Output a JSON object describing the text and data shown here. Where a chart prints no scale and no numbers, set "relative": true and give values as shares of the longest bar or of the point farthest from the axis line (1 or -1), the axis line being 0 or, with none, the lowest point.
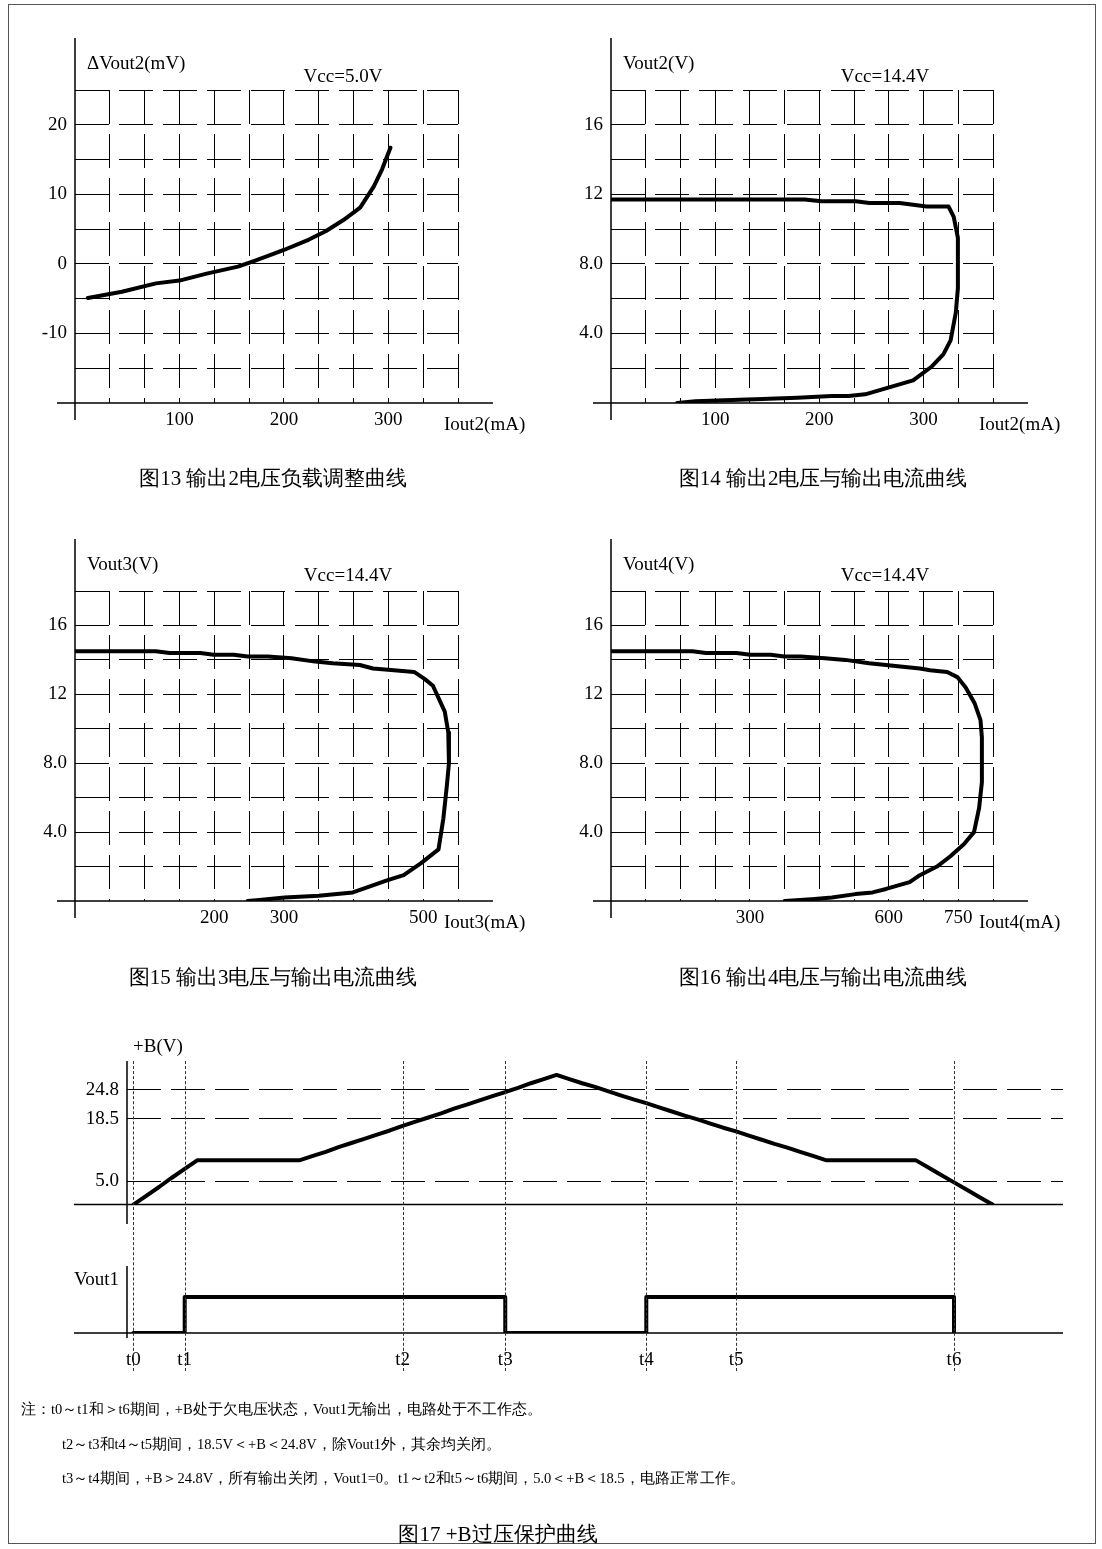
{
  "chart_data": [
    {
      "type": "line",
      "title": "图13 输出2电压负载调整曲线",
      "ylabel": "ΔVout2(mV)",
      "xlabel": "Iout2(mA)",
      "annotations": [
        "Vcc=5.0V"
      ],
      "color": "#000000",
      "marker": "none",
      "grid": true,
      "x": [
        12.3,
        44.9,
        77.5,
        100,
        126,
        156,
        175,
        200,
        224,
        240,
        257,
        273,
        286,
        294,
        302
      ],
      "values": [
        -4.9,
        -4.0,
        -2.8,
        -2.4,
        -1.4,
        -0.4,
        0.6,
        2.0,
        3.5,
        4.7,
        6.3,
        8.1,
        11.1,
        13.6,
        16.7
      ],
      "xlim": [
        0,
        366.7
      ],
      "xticks": [
        {
          "value": 33.3,
          "label": null
        },
        {
          "value": 66.7,
          "label": null
        },
        100,
        {
          "value": 133.3,
          "label": null
        },
        {
          "value": 166.7,
          "label": null
        },
        200,
        {
          "value": 233.3,
          "label": null
        },
        {
          "value": 266.7,
          "label": null
        },
        300,
        {
          "value": 333.3,
          "label": null
        },
        {
          "value": 366.7,
          "label": null
        }
      ],
      "ylim": [
        -20,
        25
      ],
      "yticks": [
        {
          "value": -15,
          "label": null
        },
        -10,
        {
          "value": -5,
          "label": null
        },
        0,
        {
          "value": 5,
          "label": null
        },
        10,
        {
          "value": 15,
          "label": null
        },
        20,
        {
          "value": 25,
          "label": null
        }
      ]
    },
    {
      "type": "line",
      "title": "图14 输出2电压与输出电流曲线",
      "ylabel": "Vout2(V)",
      "xlabel": "Iout2(mA)",
      "annotations": [
        "Vcc=14.4V"
      ],
      "color": "#000000",
      "marker": "none",
      "grid": true,
      "x": [
        0,
        186,
        202,
        235,
        248,
        277,
        290,
        303,
        324,
        329,
        333,
        333,
        331,
        326,
        319,
        308,
        290,
        267,
        244,
        228,
        212,
        179,
        130,
        81,
        63.5
      ],
      "values": [
        11.7,
        11.7,
        11.6,
        11.6,
        11.5,
        11.5,
        11.4,
        11.3,
        11.3,
        10.7,
        9.5,
        6.6,
        5.2,
        3.6,
        2.8,
        2.1,
        1.3,
        0.9,
        0.5,
        0.4,
        0.4,
        0.3,
        0.2,
        0.1,
        0
      ],
      "xlim": [
        0,
        366.7
      ],
      "xticks": [
        {
          "value": 33.3,
          "label": null
        },
        {
          "value": 66.7,
          "label": null
        },
        100,
        {
          "value": 133.3,
          "label": null
        },
        {
          "value": 166.7,
          "label": null
        },
        200,
        {
          "value": 233.3,
          "label": null
        },
        {
          "value": 266.7,
          "label": null
        },
        300,
        {
          "value": 333.3,
          "label": null
        },
        {
          "value": 366.7,
          "label": null
        }
      ],
      "ylim": [
        0,
        18
      ],
      "yticks": [
        {
          "value": 2,
          "label": null
        },
        {
          "value": 4,
          "label": "4.0"
        },
        {
          "value": 6,
          "label": null
        },
        {
          "value": 8,
          "label": "8.0"
        },
        {
          "value": 10,
          "label": null
        },
        12,
        {
          "value": 14,
          "label": null
        },
        16,
        {
          "value": 18,
          "label": null
        }
      ]
    },
    {
      "type": "line",
      "title": "图15 输出3电压与输出电流曲线",
      "ylabel": "Vout3(V)",
      "xlabel": "Iout3(mA)",
      "annotations": [
        "Vcc=14.4V"
      ],
      "color": "#000000",
      "marker": "none",
      "grid": true,
      "x": [
        0,
        116,
        136,
        180,
        199,
        228,
        248,
        277,
        311,
        345,
        370,
        409,
        428,
        458,
        487,
        502,
        514,
        531,
        536,
        537,
        534,
        529,
        522,
        497,
        472,
        448,
        399,
        350,
        301,
        248
      ],
      "values": [
        14.5,
        14.5,
        14.4,
        14.4,
        14.3,
        14.3,
        14.2,
        14.2,
        14.1,
        13.9,
        13.8,
        13.7,
        13.5,
        13.4,
        13.3,
        12.9,
        12.5,
        11.0,
        9.8,
        8.0,
        6.7,
        4.8,
        3.0,
        2.2,
        1.5,
        1.2,
        0.5,
        0.3,
        0.2,
        0
      ],
      "xlim": [
        0,
        550
      ],
      "xticks": [
        {
          "value": 50,
          "label": null
        },
        {
          "value": 100,
          "label": null
        },
        {
          "value": 150,
          "label": null
        },
        200,
        {
          "value": 250,
          "label": null
        },
        300,
        {
          "value": 350,
          "label": null
        },
        {
          "value": 400,
          "label": null
        },
        {
          "value": 450,
          "label": null
        },
        500,
        {
          "value": 550,
          "label": null
        }
      ],
      "ylim": [
        0,
        18
      ],
      "yticks": [
        {
          "value": 2,
          "label": null
        },
        {
          "value": 4,
          "label": "4.0"
        },
        {
          "value": 6,
          "label": null
        },
        {
          "value": 8,
          "label": "8.0"
        },
        {
          "value": 10,
          "label": null
        },
        12,
        {
          "value": 14,
          "label": null
        },
        16,
        {
          "value": 18,
          "label": null
        }
      ]
    },
    {
      "type": "line",
      "title": "图16 输出4电压与输出电流曲线",
      "ylabel": "Vout4(V)",
      "xlabel": "Iout4(mA)",
      "annotations": [
        "Vcc=14.4V"
      ],
      "color": "#000000",
      "marker": "none",
      "grid": true,
      "x": [
        0,
        176,
        205,
        271,
        301,
        345,
        374,
        410,
        462,
        506,
        557,
        594,
        630,
        667,
        689,
        726,
        748,
        766,
        785,
        798,
        801,
        801,
        795,
        784,
        762,
        733,
        704,
        667,
        645,
        594,
        565,
        528,
        477,
        433,
        375
      ],
      "values": [
        14.5,
        14.5,
        14.4,
        14.4,
        14.3,
        14.3,
        14.2,
        14.2,
        14.1,
        14.0,
        13.8,
        13.7,
        13.6,
        13.5,
        13.4,
        13.3,
        13.0,
        12.4,
        11.5,
        10.5,
        9.5,
        6.9,
        5.4,
        4.0,
        3.3,
        2.6,
        2.0,
        1.5,
        1.1,
        0.7,
        0.5,
        0.4,
        0.2,
        0.1,
        0
      ],
      "xlim": [
        0,
        825
      ],
      "xticks": [
        {
          "value": 75,
          "label": null
        },
        {
          "value": 150,
          "label": null
        },
        {
          "value": 225,
          "label": null
        },
        300,
        {
          "value": 375,
          "label": null
        },
        {
          "value": 450,
          "label": null
        },
        {
          "value": 525,
          "label": null
        },
        600,
        {
          "value": 675,
          "label": null
        },
        750,
        {
          "value": 825,
          "label": null
        }
      ],
      "ylim": [
        0,
        18
      ],
      "yticks": [
        {
          "value": 2,
          "label": null
        },
        {
          "value": 4,
          "label": "4.0"
        },
        {
          "value": 6,
          "label": null
        },
        {
          "value": 8,
          "label": "8.0"
        },
        {
          "value": 10,
          "label": null
        },
        12,
        {
          "value": 14,
          "label": null
        },
        16,
        {
          "value": 18,
          "label": null
        }
      ]
    },
    {
      "type": "line",
      "ylabel": "+B(V)",
      "color": "#000000",
      "marker": "none",
      "grid": true,
      "tick_labels": "y",
      "categories": [
        null,
        null,
        null,
        null,
        null,
        null,
        null,
        null,
        null,
        null,
        null,
        null,
        null,
        null,
        null,
        null,
        null,
        null,
        null,
        null,
        null,
        null,
        null,
        null,
        null,
        null,
        null,
        null,
        null,
        null,
        null,
        null,
        null,
        null,
        null,
        null,
        null,
        null,
        null,
        null,
        null,
        null,
        null,
        null,
        null,
        null,
        null,
        null,
        null,
        null,
        null,
        null,
        null,
        null,
        null,
        null,
        null,
        null,
        null,
        null,
        null,
        null,
        null,
        null,
        null,
        null,
        null,
        null,
        null,
        null,
        null,
        null,
        null
      ],
      "values": [
        0,
        1.9,
        3.8,
        5.8,
        7.7,
        9.6,
        9.6,
        9.6,
        9.6,
        9.6,
        9.6,
        9.6,
        9.6,
        9.6,
        10.5,
        11.4,
        12.4,
        13.3,
        14.2,
        15.1,
        16.0,
        17.0,
        17.9,
        18.8,
        19.7,
        20.7,
        21.6,
        22.5,
        23.4,
        24.3,
        25.2,
        26.2,
        27.1,
        28.0,
        27.1,
        26.2,
        25.4,
        24.5,
        23.6,
        22.7,
        21.9,
        21.0,
        20.1,
        19.2,
        18.4,
        17.5,
        16.6,
        15.8,
        14.9,
        14.0,
        13.1,
        12.3,
        11.4,
        10.5,
        9.6,
        9.6,
        9.6,
        9.6,
        9.6,
        9.6,
        9.6,
        9.6,
        8.0,
        6.4,
        4.8,
        3.2,
        1.6,
        0,
        null,
        null,
        null,
        null,
        null
      ],
      "ylim": [
        0,
        31
      ],
      "yticks": [
        {
          "value": 5,
          "label": "5.0"
        },
        18.5,
        24.8
      ]
    },
    {
      "type": "step",
      "title": "图17 +B过压保护曲线",
      "ylabel": "Vout1",
      "relative": true,
      "color": "#000000",
      "marker": "none",
      "grid": "x",
      "tick_labels": "x",
      "annotations": [
        "注：t0～t1和＞t6期间，+B处于欠电压状态，Vout1无输出，电路处于不工作态。",
        "t2～t3和t4～t5期间，18.5V＜+B＜24.8V，除Vout1外，其余均关闭。",
        "t3～t4期间，+B＞24.8V，所有输出关闭，Vout1=0。t1～t2和t5～t6期间，5.0＜+B＜18.5，电路正常工作。"
      ],
      "categories": [
        "t0",
        null,
        null,
        null,
        "t1",
        null,
        null,
        null,
        null,
        null,
        null,
        null,
        null,
        null,
        null,
        null,
        null,
        null,
        null,
        null,
        null,
        "t2",
        null,
        null,
        null,
        null,
        null,
        null,
        null,
        "t3",
        null,
        null,
        null,
        null,
        null,
        null,
        null,
        null,
        null,
        null,
        "t4",
        null,
        null,
        null,
        null,
        null,
        null,
        "t5",
        null,
        null,
        null,
        null,
        null,
        null,
        null,
        null,
        null,
        null,
        null,
        null,
        null,
        null,
        null,
        null,
        "t6",
        null,
        null,
        null,
        null,
        null,
        null,
        null,
        null
      ],
      "values": [
        0,
        0,
        0,
        0,
        1,
        1,
        1,
        1,
        1,
        1,
        1,
        1,
        1,
        1,
        1,
        1,
        1,
        1,
        1,
        1,
        1,
        1,
        1,
        1,
        1,
        1,
        1,
        1,
        1,
        0,
        0,
        0,
        0,
        0,
        0,
        0,
        0,
        0,
        0,
        0,
        1,
        1,
        1,
        1,
        1,
        1,
        1,
        1,
        1,
        1,
        1,
        1,
        1,
        1,
        1,
        1,
        1,
        1,
        1,
        1,
        1,
        1,
        1,
        1,
        0,
        null,
        null,
        null,
        null,
        null,
        null,
        null,
        null
      ]
    }
  ]
}
